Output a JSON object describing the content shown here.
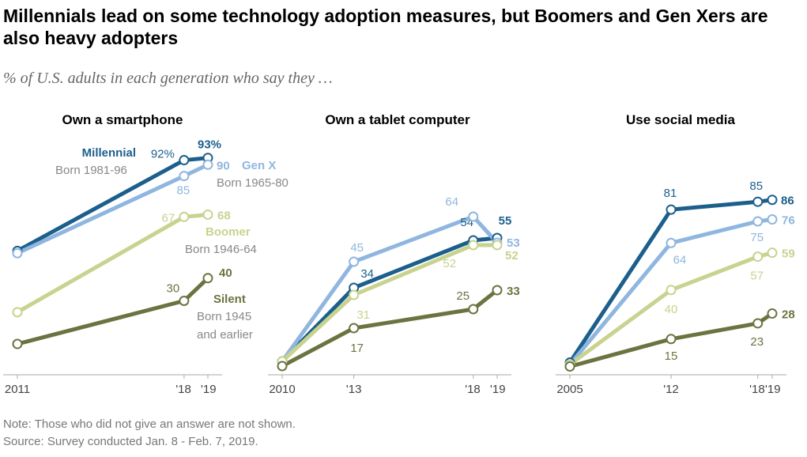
{
  "title": "Millennials lead on some technology adoption measures, but Boomers and Gen Xers are also heavy adopters",
  "subtitle": "% of U.S. adults in each generation who say they …",
  "note": "Note: Those who did not give an answer are not shown.",
  "source": "Source: Survey conducted Jan. 8 - Feb. 7, 2019.",
  "colors": {
    "millennial": "#1c5f8c",
    "genx": "#8fb6df",
    "boomer": "#c7d38f",
    "silent": "#6b7440"
  },
  "chart_data": [
    {
      "type": "line",
      "title": "Own a smartphone",
      "x": [
        2011,
        2018,
        2019
      ],
      "tick_labels": [
        "2011",
        "'18",
        "'19"
      ],
      "series": [
        {
          "name": "Millennial",
          "born": "Born 1981-96",
          "values": [
            52,
            92,
            93
          ],
          "labels": [
            "",
            "92%",
            "93%"
          ]
        },
        {
          "name": "Gen X",
          "born": "Born 1965-80",
          "values": [
            51,
            85,
            90
          ],
          "labels": [
            "",
            "85",
            "90"
          ]
        },
        {
          "name": "Boomer",
          "born": "Born 1946-64",
          "values": [
            25,
            67,
            68
          ],
          "labels": [
            "",
            "67",
            "68"
          ]
        },
        {
          "name": "Silent",
          "born": "Born 1945 and earlier",
          "values": [
            11,
            30,
            40
          ],
          "labels": [
            "",
            "30",
            "40"
          ]
        }
      ]
    },
    {
      "type": "line",
      "title": "Own a tablet computer",
      "x": [
        2010,
        2013,
        2018,
        2019
      ],
      "tick_labels": [
        "2010",
        "'13",
        "'18",
        "'19"
      ],
      "series": [
        {
          "name": "Millennial",
          "values": [
            3,
            34,
            54,
            55
          ],
          "labels": [
            "",
            "34",
            "54",
            "55"
          ]
        },
        {
          "name": "Gen X",
          "values": [
            3,
            45,
            64,
            53
          ],
          "labels": [
            "",
            "45",
            "64",
            "53"
          ]
        },
        {
          "name": "Boomer",
          "values": [
            3,
            31,
            52,
            52
          ],
          "labels": [
            "",
            "31",
            "52",
            "52"
          ]
        },
        {
          "name": "Silent",
          "values": [
            1,
            17,
            25,
            33
          ],
          "labels": [
            "",
            "17",
            "25",
            "33"
          ]
        }
      ]
    },
    {
      "type": "line",
      "title": "Use social media",
      "x": [
        2005,
        2012,
        2018,
        2019
      ],
      "tick_labels": [
        "2005",
        "'12",
        "'18",
        "'19"
      ],
      "series": [
        {
          "name": "Millennial",
          "values": [
            3,
            81,
            85,
            86
          ],
          "labels": [
            "",
            "81",
            "85",
            "86"
          ]
        },
        {
          "name": "Gen X",
          "values": [
            2,
            64,
            75,
            76
          ],
          "labels": [
            "",
            "64",
            "75",
            "76"
          ]
        },
        {
          "name": "Boomer",
          "values": [
            2,
            40,
            57,
            59
          ],
          "labels": [
            "",
            "40",
            "57",
            "59"
          ]
        },
        {
          "name": "Silent",
          "values": [
            1,
            15,
            23,
            28
          ],
          "labels": [
            "",
            "15",
            "23",
            "28"
          ]
        }
      ]
    }
  ]
}
